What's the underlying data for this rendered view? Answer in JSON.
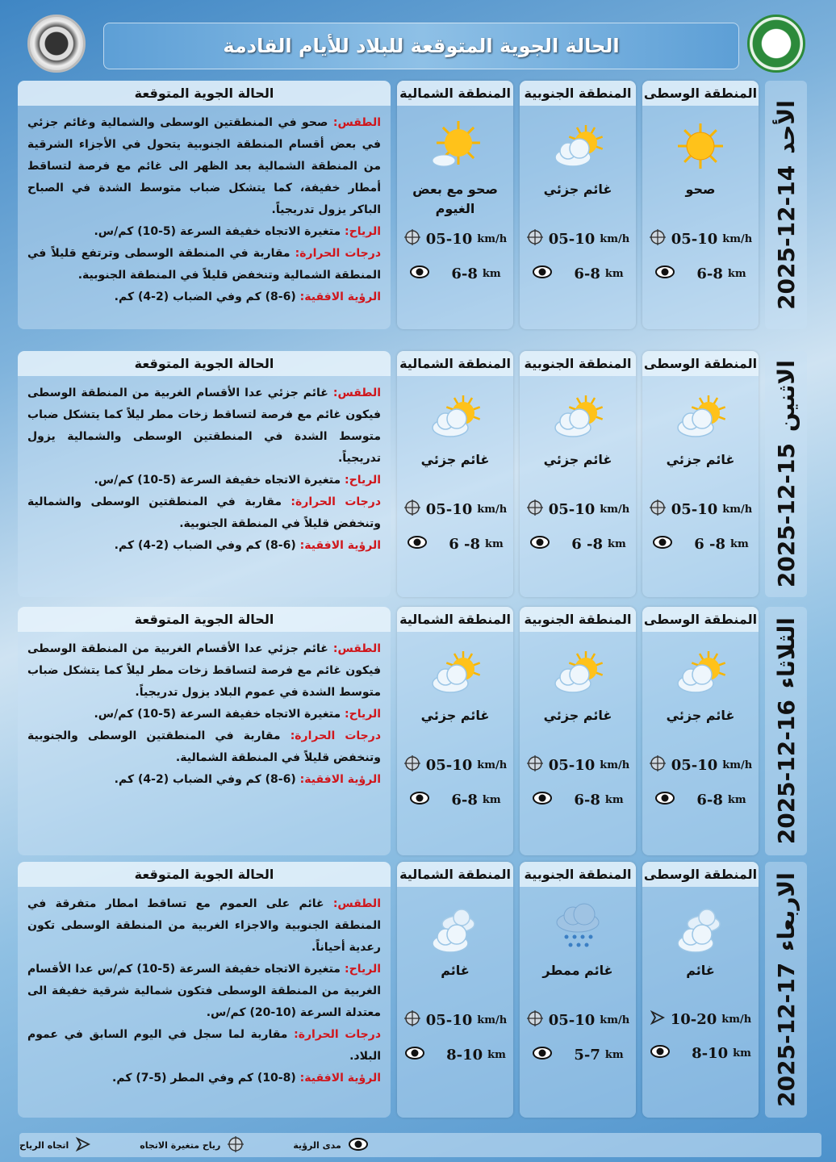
{
  "header": {
    "title": "الحالة الجوية المتوقعة للبلاد للأيام القادمة"
  },
  "logos": {
    "left": "Weather Forecasting Dept",
    "right": "Meteorological Organization"
  },
  "desc_title": "الحالة الجوية المتوقعة",
  "labels": {
    "weather": "الطقس:",
    "wind": "الرياح:",
    "temp": "درجات الحرارة:",
    "vis": "الرؤية الافقية:"
  },
  "days": [
    {
      "date": "2025-12-14",
      "day": "الأحد",
      "regions": [
        {
          "name": "المنطقة الوسطى",
          "icon": "sun",
          "condition": "صحو",
          "wind_icon": "variable-wind",
          "wind": "05-10",
          "wind_unit": "km/h",
          "vis": "6-8",
          "vis_unit": "km"
        },
        {
          "name": "المنطقة الجنوبية",
          "icon": "partly-cloudy",
          "condition": "غائم جزئي",
          "wind_icon": "variable-wind",
          "wind": "05-10",
          "wind_unit": "km/h",
          "vis": "6-8",
          "vis_unit": "km"
        },
        {
          "name": "المنطقة الشمالية",
          "icon": "sun-cloud",
          "condition": "صحو مع بعض الغيوم",
          "wind_icon": "variable-wind",
          "wind": "05-10",
          "wind_unit": "km/h",
          "vis": "6-8",
          "vis_unit": "km"
        }
      ],
      "weather": "صحو في المنطقتين الوسطى والشمالية وغائم جزئي في بعض أقسام المنطقة الجنوبية يتحول في الأجزاء الشرقية من المنطقة الشمالية بعد الظهر الى غائم مع فرصة لتساقط أمطار خفيفة، كما يتشكل ضباب متوسط الشدة في الصباح الباكر يزول تدريجياً.",
      "wind": "متغيرة الاتجاه خفيفة السرعة (5-10) كم/س.",
      "temp": "مقاربة في المنطقة الوسطى وترتفع قليلاً في المنطقة الشمالية وتنخفض قليلاً في المنطقة الجنوبية.",
      "vis": "(6-8) كم وفي الضباب (2-4) كم."
    },
    {
      "date": "2025-12-15",
      "day": "الاثنين",
      "regions": [
        {
          "name": "المنطقة الوسطى",
          "icon": "partly-cloudy",
          "condition": "غائم جزئي",
          "wind_icon": "variable-wind",
          "wind": "05-10",
          "wind_unit": "km/h",
          "vis": "6 -8",
          "vis_unit": "km"
        },
        {
          "name": "المنطقة الجنوبية",
          "icon": "partly-cloudy",
          "condition": "غائم جزئي",
          "wind_icon": "variable-wind",
          "wind": "05-10",
          "wind_unit": "km/h",
          "vis": "6 -8",
          "vis_unit": "km"
        },
        {
          "name": "المنطقة الشمالية",
          "icon": "partly-cloudy",
          "condition": "غائم جزئي",
          "wind_icon": "variable-wind",
          "wind": "05-10",
          "wind_unit": "km/h",
          "vis": "6 -8",
          "vis_unit": "km"
        }
      ],
      "weather": "غائم جزئي عدا الأقسام الغربية من المنطقة الوسطى فيكون غائم مع فرصة لتساقط زخات مطر ليلاً كما يتشكل ضباب متوسط الشدة في المنطقتين الوسطى والشمالية يزول تدريجياً.",
      "wind": "متغيرة الاتجاه خفيفة السرعة (5-10) كم/س.",
      "temp": "مقاربة في المنطقتين الوسطى والشمالية وتنخفض قليلاً في المنطقة الجنوبية.",
      "vis": "(6-8) كم وفي الضباب (2-4) كم."
    },
    {
      "date": "2025-12-16",
      "day": "الثلاثاء",
      "regions": [
        {
          "name": "المنطقة الوسطى",
          "icon": "partly-cloudy",
          "condition": "غائم جزئي",
          "wind_icon": "variable-wind",
          "wind": "05-10",
          "wind_unit": "km/h",
          "vis": "6-8",
          "vis_unit": "km"
        },
        {
          "name": "المنطقة الجنوبية",
          "icon": "partly-cloudy",
          "condition": "غائم جزئي",
          "wind_icon": "variable-wind",
          "wind": "05-10",
          "wind_unit": "km/h",
          "vis": "6-8",
          "vis_unit": "km"
        },
        {
          "name": "المنطقة الشمالية",
          "icon": "partly-cloudy",
          "condition": "غائم جزئي",
          "wind_icon": "variable-wind",
          "wind": "05-10",
          "wind_unit": "km/h",
          "vis": "6-8",
          "vis_unit": "km"
        }
      ],
      "weather": "غائم جزئي عدا الأقسام الغربية من المنطقة الوسطى فيكون غائم مع فرصة لتساقط زخات مطر ليلاً كما يتشكل ضباب متوسط الشدة في عموم البلاد يزول تدريجياً.",
      "wind": "متغيرة الاتجاه خفيفة السرعة (5-10) كم/س.",
      "temp": "مقاربة في المنطقتين الوسطى والجنوبية وتنخفض قليلاً في المنطقة الشمالية.",
      "vis": "(6-8) كم وفي الضباب (2-4) كم."
    },
    {
      "date": "2025-12-17",
      "day": "الاربعاء",
      "regions": [
        {
          "name": "المنطقة الوسطى",
          "icon": "cloudy",
          "condition": "غائم",
          "wind_icon": "wind-direction-arrow",
          "wind": "10-20",
          "wind_unit": "km/h",
          "vis": "8-10",
          "vis_unit": "km"
        },
        {
          "name": "المنطقة الجنوبية",
          "icon": "rain",
          "condition": "غائم ممطر",
          "wind_icon": "variable-wind",
          "wind": "05-10",
          "wind_unit": "km/h",
          "vis": "5-7",
          "vis_unit": "km"
        },
        {
          "name": "المنطقة الشمالية",
          "icon": "cloudy",
          "condition": "غائم",
          "wind_icon": "variable-wind",
          "wind": "05-10",
          "wind_unit": "km/h",
          "vis": "8-10",
          "vis_unit": "km"
        }
      ],
      "weather": "غائم على العموم مع تساقط امطار متفرقة في المنطقة الجنوبية والاجزاء الغربية من المنطقة الوسطى تكون رعدية أحياناً.",
      "wind": "متغيرة الاتجاه خفيفة السرعة (5-10) كم/س عدا الأقسام الغربية من المنطقة الوسطى فتكون شمالية شرقية خفيفة الى معتدلة السرعة (10-20) كم/س.",
      "temp": "مقاربة لما سجل في اليوم السابق في عموم البلاد.",
      "vis": "(8-10) كم وفي المطر (5-7) كم."
    }
  ],
  "legend": [
    {
      "icon": "wind-direction-arrow",
      "label": "اتجاه الرياح"
    },
    {
      "icon": "variable-wind",
      "label": "رياح متغيرة الاتجاه"
    },
    {
      "icon": "eye",
      "label": "مدى الرؤية"
    }
  ]
}
